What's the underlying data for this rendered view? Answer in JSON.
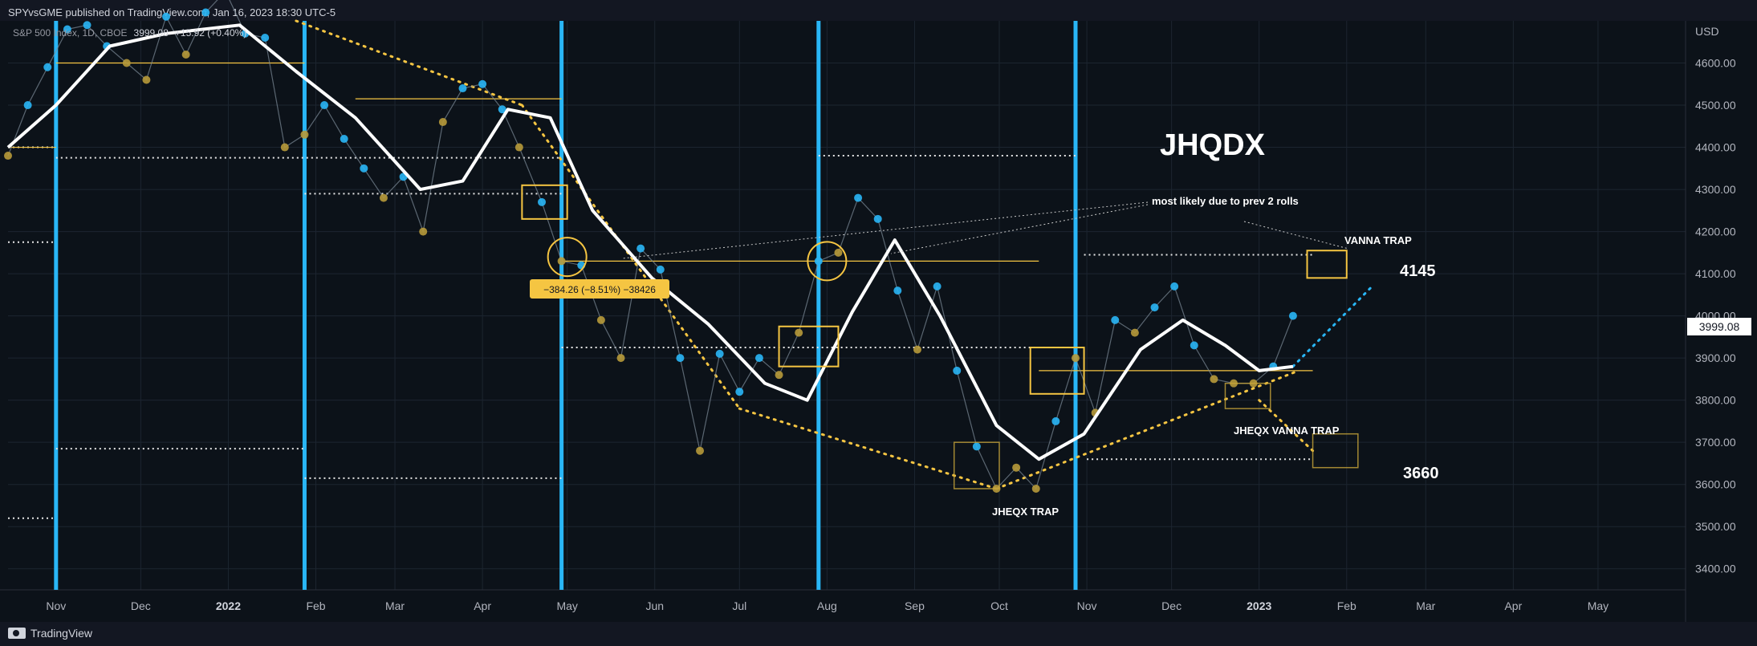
{
  "header": {
    "published": "SPYvsGME published on TradingView.com, Jan 16, 2023 18:30 UTC-5"
  },
  "legend": {
    "symbol": "S&P 500 Index, 1D, CBOE",
    "close": "3999.08",
    "change": "+15.92 (+0.40%)"
  },
  "footer": {
    "brand": "TradingView"
  },
  "colors": {
    "background": "#0c1219",
    "accent_blue": "#29b6f6",
    "accent_yellow": "#f5c542",
    "ma_line": "#ffffff"
  },
  "chart_data": {
    "type": "line",
    "title": "JHQDX",
    "currency": "USD",
    "ylim": [
      3350,
      4700
    ],
    "xlim": [
      "2021-10-15",
      "2023-06-01"
    ],
    "y_ticks": [
      "4600.00",
      "4500.00",
      "4400.00",
      "4300.00",
      "4200.00",
      "4100.00",
      "4000.00",
      "3900.00",
      "3800.00",
      "3700.00",
      "3600.00",
      "3500.00",
      "3400.00"
    ],
    "x_ticks": [
      {
        "label": "Nov",
        "date": "2021-11-01",
        "bold": false
      },
      {
        "label": "Dec",
        "date": "2021-12-01",
        "bold": false
      },
      {
        "label": "2022",
        "date": "2022-01-01",
        "bold": true
      },
      {
        "label": "Feb",
        "date": "2022-02-01",
        "bold": false
      },
      {
        "label": "Mar",
        "date": "2022-03-01",
        "bold": false
      },
      {
        "label": "Apr",
        "date": "2022-04-01",
        "bold": false
      },
      {
        "label": "May",
        "date": "2022-05-01",
        "bold": false
      },
      {
        "label": "Jun",
        "date": "2022-06-01",
        "bold": false
      },
      {
        "label": "Jul",
        "date": "2022-07-01",
        "bold": false
      },
      {
        "label": "Aug",
        "date": "2022-08-01",
        "bold": false
      },
      {
        "label": "Sep",
        "date": "2022-09-01",
        "bold": false
      },
      {
        "label": "Oct",
        "date": "2022-10-01",
        "bold": false
      },
      {
        "label": "Nov",
        "date": "2022-11-01",
        "bold": false
      },
      {
        "label": "Dec",
        "date": "2022-12-01",
        "bold": false
      },
      {
        "label": "2023",
        "date": "2023-01-01",
        "bold": true
      },
      {
        "label": "Feb",
        "date": "2023-02-01",
        "bold": false
      },
      {
        "label": "Mar",
        "date": "2023-03-01",
        "bold": false
      },
      {
        "label": "Apr",
        "date": "2023-04-01",
        "bold": false
      },
      {
        "label": "May",
        "date": "2023-05-01",
        "bold": false
      }
    ],
    "price_tag": "3999.08",
    "series": [
      {
        "name": "S&P 500 Index",
        "x": [
          "2021-10-15",
          "2021-10-22",
          "2021-10-29",
          "2021-11-05",
          "2021-11-12",
          "2021-11-19",
          "2021-11-26",
          "2021-12-03",
          "2021-12-10",
          "2021-12-17",
          "2021-12-24",
          "2021-12-31",
          "2022-01-07",
          "2022-01-14",
          "2022-01-21",
          "2022-01-28",
          "2022-02-04",
          "2022-02-11",
          "2022-02-18",
          "2022-02-25",
          "2022-03-04",
          "2022-03-11",
          "2022-03-18",
          "2022-03-25",
          "2022-04-01",
          "2022-04-08",
          "2022-04-14",
          "2022-04-22",
          "2022-04-29",
          "2022-05-06",
          "2022-05-13",
          "2022-05-20",
          "2022-05-27",
          "2022-06-03",
          "2022-06-10",
          "2022-06-17",
          "2022-06-24",
          "2022-07-01",
          "2022-07-08",
          "2022-07-15",
          "2022-07-22",
          "2022-07-29",
          "2022-08-05",
          "2022-08-12",
          "2022-08-19",
          "2022-08-26",
          "2022-09-02",
          "2022-09-09",
          "2022-09-16",
          "2022-09-23",
          "2022-09-30",
          "2022-10-07",
          "2022-10-14",
          "2022-10-21",
          "2022-10-28",
          "2022-11-04",
          "2022-11-11",
          "2022-11-18",
          "2022-11-25",
          "2022-12-02",
          "2022-12-09",
          "2022-12-16",
          "2022-12-23",
          "2022-12-30",
          "2023-01-06",
          "2023-01-13"
        ],
        "y": [
          4380,
          4500,
          4590,
          4680,
          4690,
          4640,
          4600,
          4560,
          4710,
          4620,
          4720,
          4770,
          4670,
          4660,
          4400,
          4430,
          4500,
          4420,
          4350,
          4280,
          4330,
          4200,
          4460,
          4540,
          4550,
          4490,
          4400,
          4270,
          4130,
          4120,
          3990,
          3900,
          4160,
          4110,
          3900,
          3680,
          3910,
          3820,
          3900,
          3860,
          3960,
          4130,
          4150,
          4280,
          4230,
          4060,
          3920,
          4070,
          3870,
          3690,
          3590,
          3640,
          3590,
          3750,
          3900,
          3770,
          3990,
          3960,
          4020,
          4070,
          3930,
          3850,
          3840,
          3840,
          3880,
          4000
        ]
      },
      {
        "name": "MA",
        "x": [
          "2021-10-15",
          "2021-11-01",
          "2021-11-20",
          "2021-12-10",
          "2022-01-05",
          "2022-01-25",
          "2022-02-15",
          "2022-03-10",
          "2022-03-25",
          "2022-04-10",
          "2022-04-25",
          "2022-05-10",
          "2022-05-31",
          "2022-06-20",
          "2022-07-10",
          "2022-07-25",
          "2022-08-10",
          "2022-08-25",
          "2022-09-10",
          "2022-09-30",
          "2022-10-15",
          "2022-10-31",
          "2022-11-20",
          "2022-12-05",
          "2022-12-20",
          "2023-01-01",
          "2023-01-13"
        ],
        "y": [
          4400,
          4500,
          4640,
          4670,
          4690,
          4580,
          4470,
          4300,
          4320,
          4490,
          4470,
          4250,
          4090,
          3980,
          3840,
          3800,
          4010,
          4180,
          4000,
          3740,
          3660,
          3720,
          3920,
          3990,
          3930,
          3870,
          3880
        ]
      }
    ],
    "annotations": [
      {
        "text": "JHQDX",
        "kind": "title"
      },
      {
        "text": "most likely due to prev 2 rolls",
        "kind": "note"
      },
      {
        "text": "VANNA TRAP",
        "kind": "label"
      },
      {
        "text": "4145",
        "kind": "target"
      },
      {
        "text": "3660",
        "kind": "target"
      },
      {
        "text": "JHEQX VANNA TRAP",
        "kind": "label"
      },
      {
        "text": "JHEQX TRAP",
        "kind": "label"
      },
      {
        "text": "−384.26 (−8.51%) −38426",
        "kind": "measure"
      }
    ]
  }
}
